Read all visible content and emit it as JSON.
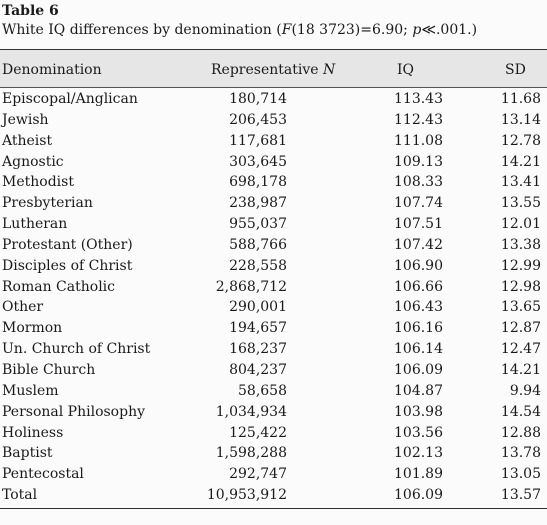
{
  "table": {
    "label": "Table 6",
    "caption": {
      "before": "White IQ differences by denomination (",
      "f_symbol": "F",
      "after": "(18 3723)=6.90; ",
      "p_symbol": "p",
      "p_value": "≪.001.)"
    },
    "headers": {
      "denomination": "Denomination",
      "n_label": "Representative ",
      "n_symbol": "N",
      "iq": "IQ",
      "sd": "SD"
    },
    "rows": [
      {
        "denomination": "Episcopal/Anglican",
        "n": "180,714",
        "iq": "113.43",
        "sd": "11.68"
      },
      {
        "denomination": "Jewish",
        "n": "206,453",
        "iq": "112.43",
        "sd": "13.14"
      },
      {
        "denomination": "Atheist",
        "n": "117,681",
        "iq": "111.08",
        "sd": "12.78"
      },
      {
        "denomination": "Agnostic",
        "n": "303,645",
        "iq": "109.13",
        "sd": "14.21"
      },
      {
        "denomination": "Methodist",
        "n": "698,178",
        "iq": "108.33",
        "sd": "13.41"
      },
      {
        "denomination": "Presbyterian",
        "n": "238,987",
        "iq": "107.74",
        "sd": "13.55"
      },
      {
        "denomination": "Lutheran",
        "n": "955,037",
        "iq": "107.51",
        "sd": "12.01"
      },
      {
        "denomination": "Protestant (Other)",
        "n": "588,766",
        "iq": "107.42",
        "sd": "13.38"
      },
      {
        "denomination": "Disciples of Christ",
        "n": "228,558",
        "iq": "106.90",
        "sd": "12.99"
      },
      {
        "denomination": "Roman Catholic",
        "n": "2,868,712",
        "iq": "106.66",
        "sd": "12.98"
      },
      {
        "denomination": "Other",
        "n": "290,001",
        "iq": "106.43",
        "sd": "13.65"
      },
      {
        "denomination": "Mormon",
        "n": "194,657",
        "iq": "106.16",
        "sd": "12.87"
      },
      {
        "denomination": "Un. Church of Christ",
        "n": "168,237",
        "iq": "106.14",
        "sd": "12.47"
      },
      {
        "denomination": "Bible Church",
        "n": "804,237",
        "iq": "106.09",
        "sd": "14.21"
      },
      {
        "denomination": "Muslem",
        "n": "58,658",
        "iq": "104.87",
        "sd": "9.94"
      },
      {
        "denomination": "Personal Philosophy",
        "n": "1,034,934",
        "iq": "103.98",
        "sd": "14.54"
      },
      {
        "denomination": "Holiness",
        "n": "125,422",
        "iq": "103.56",
        "sd": "12.88"
      },
      {
        "denomination": "Baptist",
        "n": "1,598,288",
        "iq": "102.13",
        "sd": "13.78"
      },
      {
        "denomination": "Pentecostal",
        "n": "292,747",
        "iq": "101.89",
        "sd": "13.05"
      },
      {
        "denomination": "Total",
        "n": "10,953,912",
        "iq": "106.09",
        "sd": "13.57"
      }
    ]
  }
}
